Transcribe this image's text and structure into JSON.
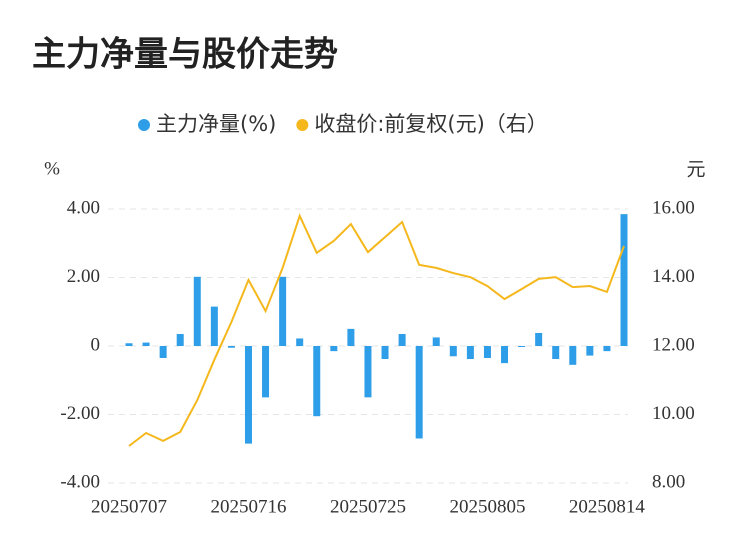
{
  "chart_data": {
    "type": "bar-line",
    "title": "主力净量与股价走势",
    "y_unit": "%",
    "y2_unit": "元",
    "categories": [
      "20250707",
      null,
      null,
      null,
      null,
      null,
      null,
      "20250716",
      null,
      null,
      null,
      null,
      null,
      null,
      "20250725",
      null,
      null,
      null,
      null,
      null,
      null,
      "20250805",
      null,
      null,
      null,
      null,
      null,
      null,
      "20250814",
      null
    ],
    "series": [
      {
        "name": "主力净量(%)",
        "type": "bar",
        "color": "#2e9ee8",
        "values": [
          0.08,
          0.1,
          -0.35,
          0.35,
          2.02,
          1.15,
          -0.05,
          -2.85,
          -1.5,
          2.02,
          0.22,
          -2.05,
          -0.15,
          0.5,
          -1.5,
          -0.38,
          0.35,
          -2.7,
          0.25,
          -0.3,
          -0.38,
          -0.35,
          -0.5,
          -0.02,
          0.38,
          -0.38,
          -0.55,
          -0.28,
          -0.15,
          3.85
        ]
      },
      {
        "name": "收盘价:前复权(元)（右）",
        "type": "line",
        "axis": "y2",
        "color": "#f5b81c",
        "values": [
          9.08,
          9.46,
          9.23,
          9.49,
          10.42,
          11.6,
          12.7,
          13.93,
          13.02,
          14.28,
          15.8,
          14.72,
          15.07,
          15.56,
          14.74,
          15.18,
          15.62,
          14.37,
          14.28,
          14.13,
          14.01,
          13.75,
          13.37,
          13.66,
          13.96,
          14.01,
          13.72,
          13.75,
          13.58,
          14.92
        ]
      }
    ],
    "ylim": [
      -4,
      4
    ],
    "yticks": [
      {
        "value": -4,
        "label": "-4.00"
      },
      {
        "value": -2,
        "label": "-2.00"
      },
      0,
      {
        "value": 2,
        "label": "2.00"
      },
      {
        "value": 4,
        "label": "4.00"
      }
    ],
    "y2lim": [
      8,
      16
    ],
    "y2ticks": [
      {
        "value": 8,
        "label": "8.00"
      },
      {
        "value": 10,
        "label": "10.00"
      },
      {
        "value": 12,
        "label": "12.00"
      },
      {
        "value": 14,
        "label": "14.00"
      },
      {
        "value": 16,
        "label": "16.00"
      }
    ],
    "grid": true
  }
}
